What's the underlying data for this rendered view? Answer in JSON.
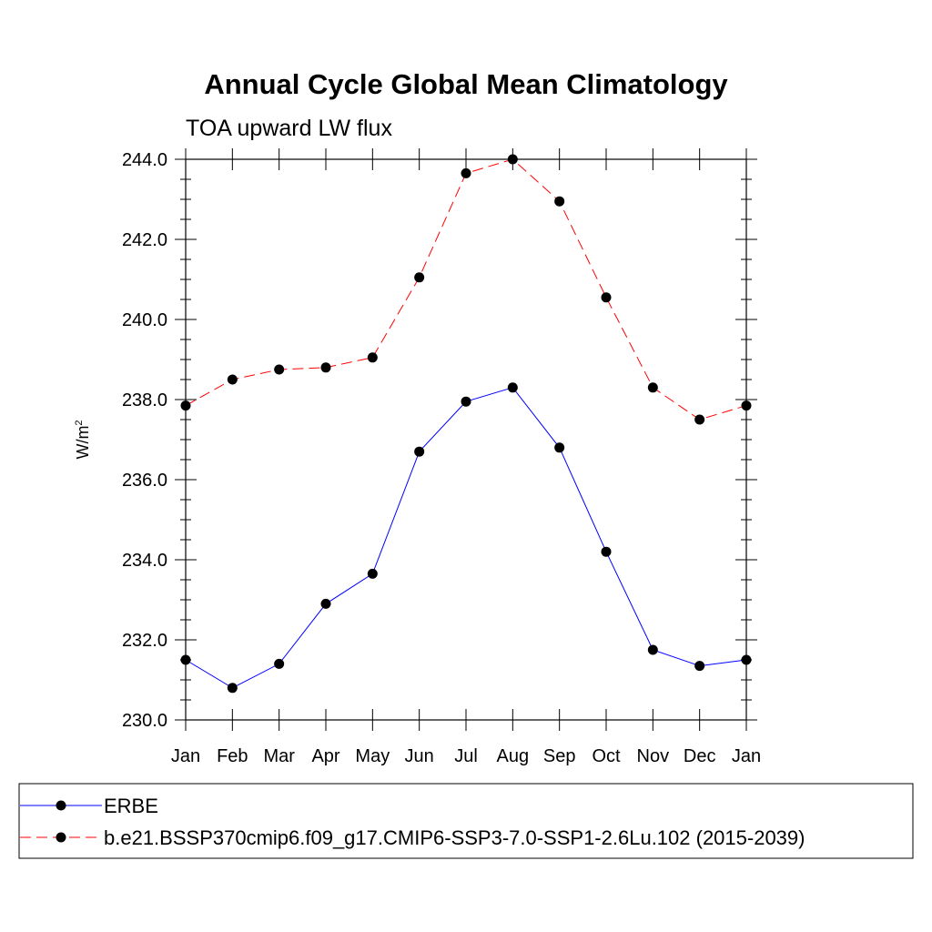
{
  "chart_data": {
    "type": "line",
    "title": "Annual Cycle Global Mean Climatology",
    "subtitle": "TOA upward LW flux",
    "ylabel": "W/m",
    "ylabel_sup": "2",
    "xlabel": "",
    "categories": [
      "Jan",
      "Feb",
      "Mar",
      "Apr",
      "May",
      "Jun",
      "Jul",
      "Aug",
      "Sep",
      "Oct",
      "Nov",
      "Dec",
      "Jan"
    ],
    "ylim": [
      230.0,
      244.0
    ],
    "yticks": [
      230.0,
      232.0,
      234.0,
      236.0,
      238.0,
      240.0,
      242.0,
      244.0
    ],
    "ytick_labels": [
      "230.0",
      "232.0",
      "234.0",
      "236.0",
      "238.0",
      "240.0",
      "242.0",
      "244.0"
    ],
    "grid": false,
    "legend_position": "bottom",
    "series": [
      {
        "name": "ERBE",
        "color": "#0000ff",
        "dash": "solid",
        "marker": "filled-circle",
        "values": [
          231.5,
          230.8,
          231.4,
          232.9,
          233.65,
          236.7,
          237.95,
          238.3,
          236.8,
          234.2,
          231.75,
          231.35,
          231.5
        ]
      },
      {
        "name": "b.e21.BSSP370cmip6.f09_g17.CMIP6-SSP3-7.0-SSP1-2.6Lu.102 (2015-2039)",
        "color": "#ff0000",
        "dash": "dashed",
        "marker": "filled-circle",
        "values": [
          237.85,
          238.5,
          238.75,
          238.8,
          239.05,
          241.05,
          243.65,
          244.0,
          242.95,
          240.55,
          238.3,
          237.5,
          237.85
        ]
      }
    ]
  }
}
